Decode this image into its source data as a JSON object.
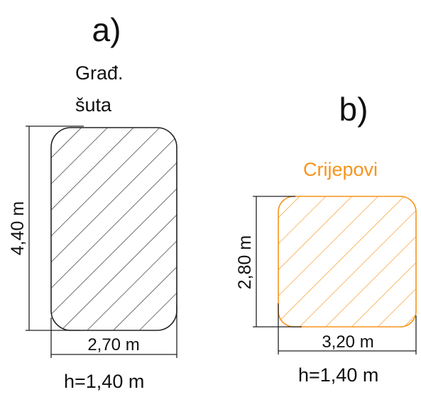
{
  "panels": [
    {
      "letter": "a)",
      "material_lines": [
        "Građ.",
        "šuta"
      ],
      "height_dim": "4,40 m",
      "width_dim": "2,70 m",
      "depth": "h=1,40 m",
      "color": "#222222"
    },
    {
      "letter": "b)",
      "material_lines": [
        "Crijepovi"
      ],
      "height_dim": "2,80 m",
      "width_dim": "3,20 m",
      "depth": "h=1,40 m",
      "color": "#f7941d"
    }
  ]
}
